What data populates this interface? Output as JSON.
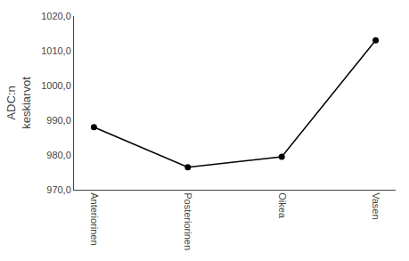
{
  "chart_data": {
    "type": "line",
    "categories": [
      "Anteriorinen",
      "Posteriorinen",
      "Oikea",
      "Vasen"
    ],
    "values": [
      988.0,
      976.5,
      979.5,
      1013.0
    ],
    "ylabel": "ADC:n\nkeskiarvot",
    "ylim": [
      970.0,
      1020.0
    ],
    "yticks": [
      {
        "value": 970.0,
        "label": "970,0"
      },
      {
        "value": 980.0,
        "label": "980,0"
      },
      {
        "value": 990.0,
        "label": "990,0"
      },
      {
        "value": 1000.0,
        "label": "1000,0"
      },
      {
        "value": 1010.0,
        "label": "1010,0"
      },
      {
        "value": 1020.0,
        "label": "1020,0"
      }
    ],
    "color": "#000000",
    "marker": "circle",
    "grid": false
  }
}
